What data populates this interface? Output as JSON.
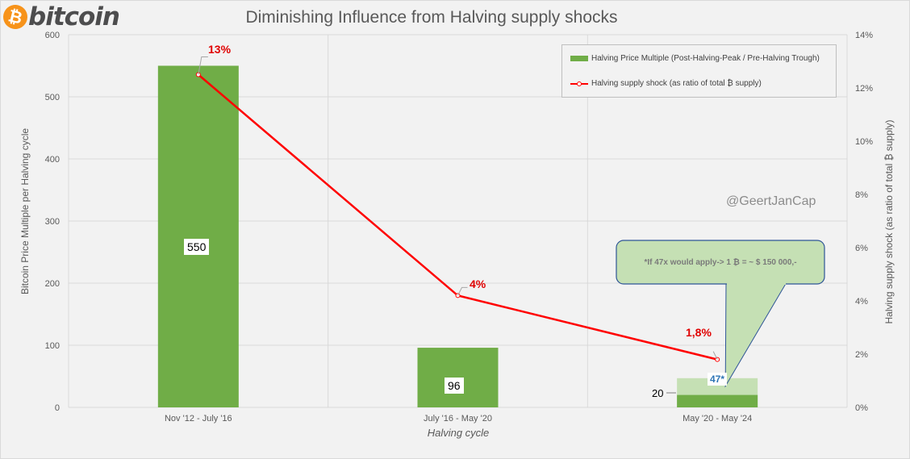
{
  "logo": {
    "coin_symbol": "₿",
    "text": "bitcoin",
    "color": "#f7931a"
  },
  "title": "Diminishing Influence from Halving supply shocks",
  "watermark": "@GeertJanCap",
  "callout": {
    "text": "*If 47x would apply-> 1 ₿ = ~ $ 150 000,-"
  },
  "chart_data": {
    "type": "bar",
    "title": "Diminishing Influence from Halving supply shocks",
    "xlabel": "Halving cycle",
    "ylabel": "Bitcoin Price Multiple  per Halving cycle",
    "y2label": "Halving supply shock (as ratio of total ₿ supply)",
    "categories": [
      "Nov '12 - July '16",
      "July '16 - May '20",
      "May '20 - May '24"
    ],
    "ylim": [
      0,
      600
    ],
    "yticks": [
      "0",
      "100",
      "200",
      "300",
      "400",
      "500",
      "600"
    ],
    "y2lim": [
      0,
      14
    ],
    "y2ticks": [
      "0%",
      "2%",
      "4%",
      "6%",
      "8%",
      "10%",
      "12%",
      "14%"
    ],
    "grid": true,
    "legend_position": "top-right",
    "series": [
      {
        "name": "Halving Price Multiple (Post-Halving-Peak / Pre-Halving Trough)",
        "kind": "bar",
        "axis": "left",
        "color": "#70ad47",
        "values": [
          550,
          96,
          20
        ],
        "labels": [
          "550",
          "96",
          "20"
        ]
      },
      {
        "name": "Halving supply shock (as ratio of total ₿ supply)",
        "kind": "line",
        "axis": "right",
        "color": "#ff0000",
        "values": [
          12.5,
          4.2,
          1.8
        ],
        "labels": [
          "13%",
          "4%",
          "1,8%"
        ]
      }
    ],
    "hypothetical_bar": {
      "category_index": 2,
      "value": 47,
      "label": "47*",
      "color": "#c5e0b4"
    }
  }
}
